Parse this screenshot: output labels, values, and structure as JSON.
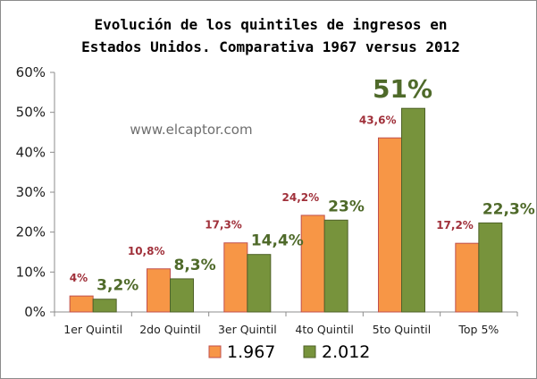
{
  "chart_data": {
    "type": "bar",
    "title_lines": [
      "Evolución de los quintiles de ingresos en",
      "Estados Unidos. Comparativa 1967 versus 2012"
    ],
    "watermark": "www.elcaptor.com",
    "categories": [
      "1er Quintil",
      "2do Quintil",
      "3er Quintil",
      "4to Quintil",
      "5to Quintil",
      "Top 5%"
    ],
    "series": [
      {
        "name": "1.967",
        "color": "#f79646",
        "values": [
          4,
          10.8,
          17.3,
          24.2,
          43.6,
          17.2
        ],
        "labels": [
          "4%",
          "10,8%",
          "17,3%",
          "24,2%",
          "43,6%",
          "17,2%"
        ]
      },
      {
        "name": "2.012",
        "color": "#77933c",
        "values": [
          3.2,
          8.3,
          14.4,
          23,
          51,
          22.3
        ],
        "labels": [
          "3,2%",
          "8,3%",
          "14,4%",
          "23%",
          "51%",
          "22,3%"
        ]
      }
    ],
    "ylim": [
      0,
      60
    ],
    "yticks": [
      0,
      10,
      20,
      30,
      40,
      50,
      60
    ],
    "ytick_labels": [
      "0%",
      "10%",
      "20%",
      "30%",
      "40%",
      "50%",
      "60%"
    ],
    "grid": false,
    "legend_position": "bottom"
  }
}
